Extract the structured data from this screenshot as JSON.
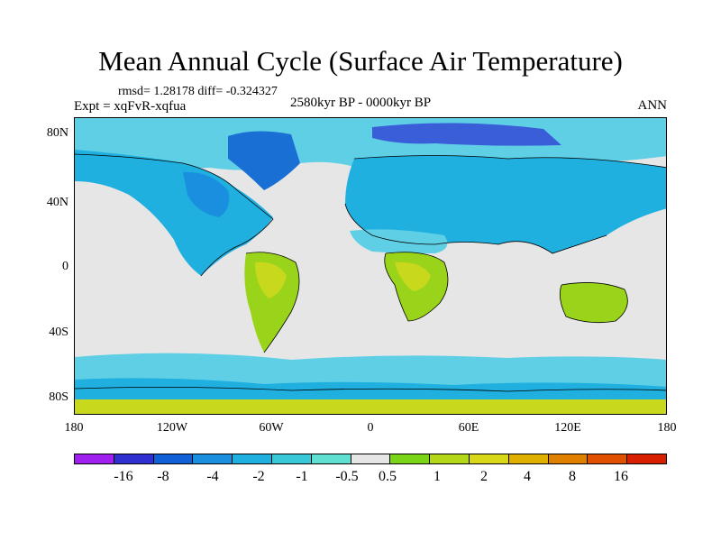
{
  "title": "Mean Annual Cycle (Surface Air Temperature)",
  "stats": "rmsd= 1.28178 diff= -0.324327",
  "experiment": "Expt = xqFvR-xqfua",
  "period": "2580kyr BP - 0000kyr BP",
  "season": "ANN",
  "map": {
    "x_ticks": [
      "180",
      "120W",
      "60W",
      "0",
      "60E",
      "120E",
      "180"
    ],
    "y_ticks": [
      "80N",
      "40N",
      "0",
      "40S",
      "80S"
    ],
    "colors": {
      "background": "#e6e6e6",
      "ocean_cold": "#5fcfe6",
      "land_cold": "#1fb0e0",
      "deep_cold": "#1a6fd4",
      "warm": "#9ad41a",
      "warm_yellow": "#c8d81c",
      "warm_orange": "#e0b000",
      "coast": "#000000"
    }
  },
  "colorbar": {
    "colors": [
      "#a020f0",
      "#3030d0",
      "#1060d8",
      "#1a8fe0",
      "#1fb0e0",
      "#39c8d8",
      "#5fe0d0",
      "#e6e6e6",
      "#7ad418",
      "#b4d818",
      "#d8d818",
      "#e0b000",
      "#e08000",
      "#e05000",
      "#d82000"
    ],
    "labels": [
      "-16",
      "-8",
      "-4",
      "-2",
      "-1",
      "-0.5",
      "0.5",
      "1",
      "2",
      "4",
      "8",
      "16"
    ]
  }
}
